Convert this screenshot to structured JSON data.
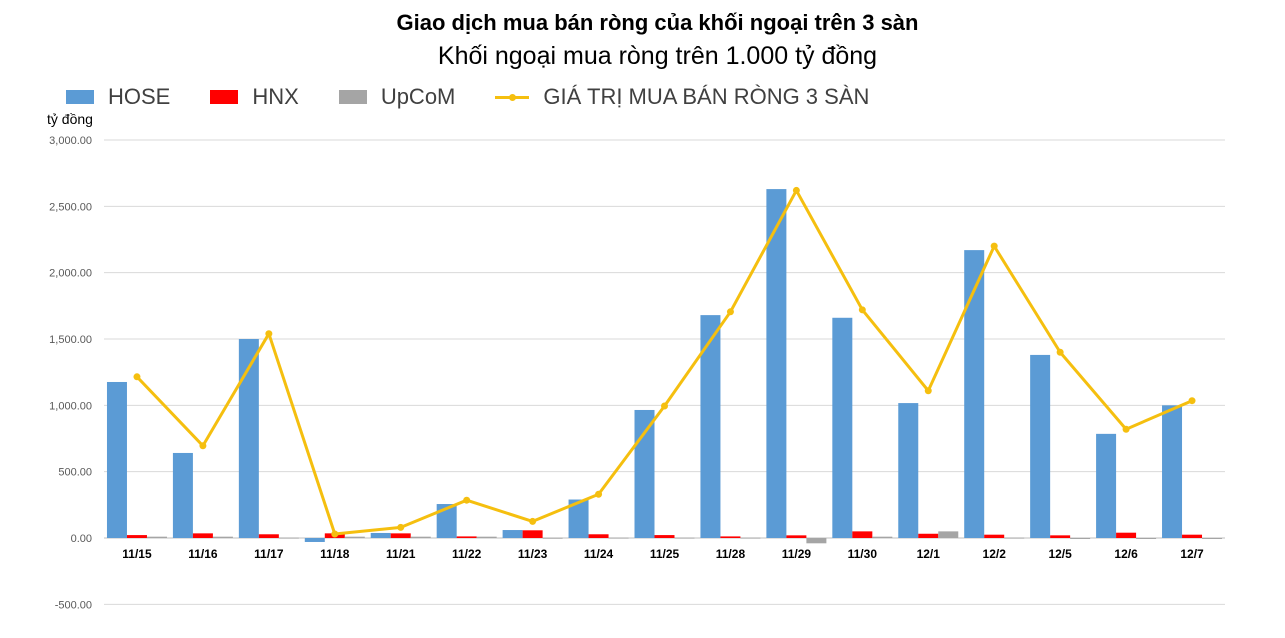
{
  "chart_data": {
    "type": "bar",
    "title": "Giao dịch mua bán ròng của khối ngoại trên 3 sàn",
    "subtitle": "Khối ngoại mua ròng trên 1.000 tỷ đồng",
    "ylabel": "tỷ đồng",
    "ylim": [
      -500,
      3000
    ],
    "yticks": [
      "-500.00",
      "0.00",
      "500.00",
      "1,000.00",
      "1,500.00",
      "2,000.00",
      "2,500.00",
      "3,000.00"
    ],
    "grid": true,
    "legend_position": "top-left",
    "categories": [
      "11/15",
      "11/16",
      "11/17",
      "11/18",
      "11/21",
      "11/22",
      "11/23",
      "11/24",
      "11/25",
      "11/28",
      "11/29",
      "11/30",
      "12/1",
      "12/2",
      "12/5",
      "12/6",
      "12/7"
    ],
    "series": [
      {
        "name": "HOSE",
        "kind": "bar",
        "color": "#5B9BD5",
        "values": [
          1176,
          641,
          1500,
          -30,
          38,
          256,
          60,
          290,
          965,
          1680,
          2630,
          1660,
          1017,
          2170,
          1380,
          785,
          1000
        ]
      },
      {
        "name": "HNX",
        "kind": "bar",
        "color": "#FF0000",
        "values": [
          22,
          35,
          28,
          35,
          35,
          12,
          58,
          28,
          22,
          12,
          20,
          50,
          32,
          25,
          20,
          40,
          25
        ]
      },
      {
        "name": "UpCoM",
        "kind": "bar",
        "color": "#A5A5A5",
        "values": [
          10,
          10,
          3,
          10,
          10,
          10,
          2,
          3,
          3,
          3,
          -40,
          10,
          50,
          3,
          -5,
          -5,
          -5
        ]
      },
      {
        "name": "GIÁ TRỊ MUA BÁN RÒNG 3 SÀN",
        "kind": "line",
        "color": "#F5BF0F",
        "values": [
          1215,
          695,
          1540,
          30,
          80,
          285,
          125,
          330,
          995,
          1705,
          2620,
          1720,
          1110,
          2200,
          1400,
          820,
          1035
        ]
      }
    ]
  }
}
